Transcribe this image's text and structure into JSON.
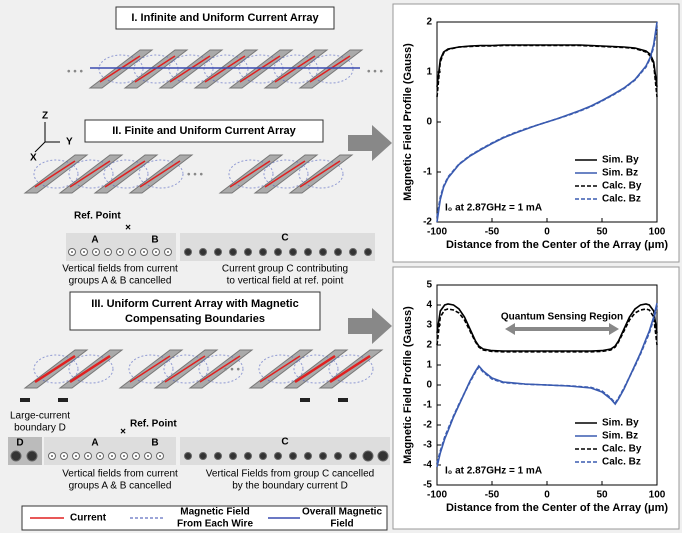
{
  "diagram": {
    "panel_1": {
      "title": "I. Infinite and Uniform Current Array"
    },
    "axes": {
      "z": "Z",
      "y": "Y",
      "x": "X"
    },
    "panel_2": {
      "title": "II. Finite and Uniform Current Array",
      "ref_point": "Ref. Point",
      "group_a": "A",
      "group_b": "B",
      "group_c": "C",
      "note_ab": [
        "Vertical fields from current",
        "groups A & B cancelled"
      ],
      "note_c": [
        "Current group C contributing",
        "to vertical field at ref. point"
      ]
    },
    "panel_3": {
      "title": [
        "III. Uniform Current Array with Magnetic",
        "Compensating Boundaries"
      ],
      "ref_point": "Ref. Point",
      "boundary": [
        "Large-current",
        "boundary D"
      ],
      "group_d": "D",
      "group_a": "A",
      "group_b": "B",
      "group_c": "C",
      "note_ab": [
        "Vertical fields from current",
        "groups A & B cancelled"
      ],
      "note_c": [
        "Vertical Fields from group C cancelled",
        "by the boundary current D"
      ]
    },
    "legend": {
      "current": "Current",
      "wire_field": [
        "Magnetic Field",
        "From Each Wire"
      ],
      "overall_field": [
        "Overall Magnetic",
        "Field"
      ]
    }
  },
  "chart_data": [
    {
      "type": "line",
      "xlabel": "Distance from the Center of the Array (μm)",
      "ylabel": "Magnetic Field Profile (Gauss)",
      "annotation": "I₀ at 2.87GHz = 1 mA",
      "legend": "lower right",
      "xlim": [
        -100,
        100
      ],
      "xticks": [
        -100,
        -50,
        0,
        50,
        100
      ],
      "ylim": [
        -2,
        2
      ],
      "yticks": [
        -2,
        -1,
        0,
        1,
        2
      ],
      "x": [
        -100,
        -97,
        -94,
        -90,
        -80,
        -70,
        -60,
        -50,
        -40,
        -30,
        -20,
        -10,
        0,
        10,
        20,
        30,
        40,
        50,
        60,
        70,
        80,
        90,
        94,
        97,
        100
      ],
      "series": [
        {
          "name": "Sim. By",
          "color": "#000000",
          "dash": false,
          "values": [
            0.7,
            1.25,
            1.4,
            1.46,
            1.5,
            1.52,
            1.53,
            1.53,
            1.54,
            1.54,
            1.54,
            1.54,
            1.54,
            1.54,
            1.54,
            1.54,
            1.53,
            1.52,
            1.51,
            1.5,
            1.48,
            1.42,
            1.35,
            1.2,
            0.7
          ]
        },
        {
          "name": "Sim. Bz",
          "color": "#3a5bb0",
          "dash": false,
          "values": [
            -2,
            -1.55,
            -1.3,
            -1.12,
            -0.85,
            -0.68,
            -0.55,
            -0.43,
            -0.32,
            -0.23,
            -0.15,
            -0.07,
            0,
            0.07,
            0.15,
            0.23,
            0.32,
            0.43,
            0.55,
            0.68,
            0.85,
            1.12,
            1.3,
            1.55,
            2
          ]
        },
        {
          "name": "Calc. By",
          "color": "#000000",
          "dash": true,
          "values": [
            0.5,
            1.2,
            1.38,
            1.45,
            1.5,
            1.51,
            1.52,
            1.52,
            1.53,
            1.53,
            1.53,
            1.53,
            1.53,
            1.53,
            1.53,
            1.53,
            1.52,
            1.51,
            1.5,
            1.49,
            1.47,
            1.4,
            1.32,
            1.15,
            0.5
          ]
        },
        {
          "name": "Calc. Bz",
          "color": "#3a5bb0",
          "dash": true,
          "values": [
            -1.9,
            -1.5,
            -1.28,
            -1.1,
            -0.84,
            -0.67,
            -0.54,
            -0.42,
            -0.31,
            -0.22,
            -0.14,
            -0.07,
            0,
            0.07,
            0.14,
            0.22,
            0.31,
            0.42,
            0.54,
            0.67,
            0.84,
            1.1,
            1.28,
            1.5,
            1.9
          ]
        }
      ]
    },
    {
      "type": "line",
      "xlabel": "Distance from the Center of the Array (μm)",
      "ylabel": "Magnetic Field Profile (Gauss)",
      "annotation": "I₀ at 2.87GHz = 1 mA",
      "region_label": "Quantum Sensing Region",
      "legend": "lower right",
      "xlim": [
        -100,
        100
      ],
      "xticks": [
        -100,
        -50,
        0,
        50,
        100
      ],
      "ylim": [
        -5,
        5
      ],
      "yticks": [
        -5,
        -4,
        -3,
        -2,
        -1,
        0,
        1,
        2,
        3,
        4,
        5
      ],
      "x": [
        -100,
        -97,
        -93,
        -90,
        -85,
        -80,
        -75,
        -70,
        -65,
        -62,
        -58,
        -50,
        -40,
        -20,
        0,
        20,
        40,
        50,
        58,
        62,
        65,
        70,
        75,
        80,
        85,
        90,
        93,
        97,
        100
      ],
      "series": [
        {
          "name": "Sim. By",
          "color": "#000000",
          "dash": false,
          "values": [
            2.6,
            3.7,
            4.0,
            4.05,
            4.0,
            3.8,
            3.4,
            2.8,
            2.2,
            1.95,
            1.8,
            1.72,
            1.7,
            1.7,
            1.7,
            1.7,
            1.7,
            1.72,
            1.8,
            1.95,
            2.2,
            2.8,
            3.4,
            3.8,
            4.0,
            4.05,
            4.0,
            3.7,
            2.6
          ]
        },
        {
          "name": "Sim. Bz",
          "color": "#3a5bb0",
          "dash": false,
          "values": [
            -4.1,
            -3.4,
            -2.7,
            -2.3,
            -1.6,
            -1.0,
            -0.4,
            0.2,
            0.7,
            0.95,
            0.7,
            0.35,
            0.15,
            0.05,
            0,
            -0.05,
            -0.15,
            -0.35,
            -0.7,
            -0.95,
            -0.7,
            -0.2,
            0.4,
            1.0,
            1.6,
            2.3,
            2.7,
            3.4,
            4.1
          ]
        },
        {
          "name": "Calc. By",
          "color": "#000000",
          "dash": true,
          "values": [
            2.0,
            3.4,
            3.75,
            3.8,
            3.75,
            3.6,
            3.25,
            2.7,
            2.15,
            1.9,
            1.75,
            1.68,
            1.66,
            1.66,
            1.66,
            1.66,
            1.66,
            1.68,
            1.75,
            1.9,
            2.15,
            2.7,
            3.25,
            3.6,
            3.75,
            3.8,
            3.75,
            3.4,
            2.0
          ]
        },
        {
          "name": "Calc. Bz",
          "color": "#3a5bb0",
          "dash": true,
          "values": [
            -3.9,
            -3.3,
            -2.6,
            -2.2,
            -1.55,
            -0.95,
            -0.4,
            0.15,
            0.65,
            0.9,
            0.65,
            0.3,
            0.12,
            0.04,
            0,
            -0.04,
            -0.12,
            -0.3,
            -0.65,
            -0.9,
            -0.65,
            -0.15,
            0.4,
            0.95,
            1.55,
            2.2,
            2.6,
            3.3,
            3.9
          ]
        }
      ]
    }
  ]
}
